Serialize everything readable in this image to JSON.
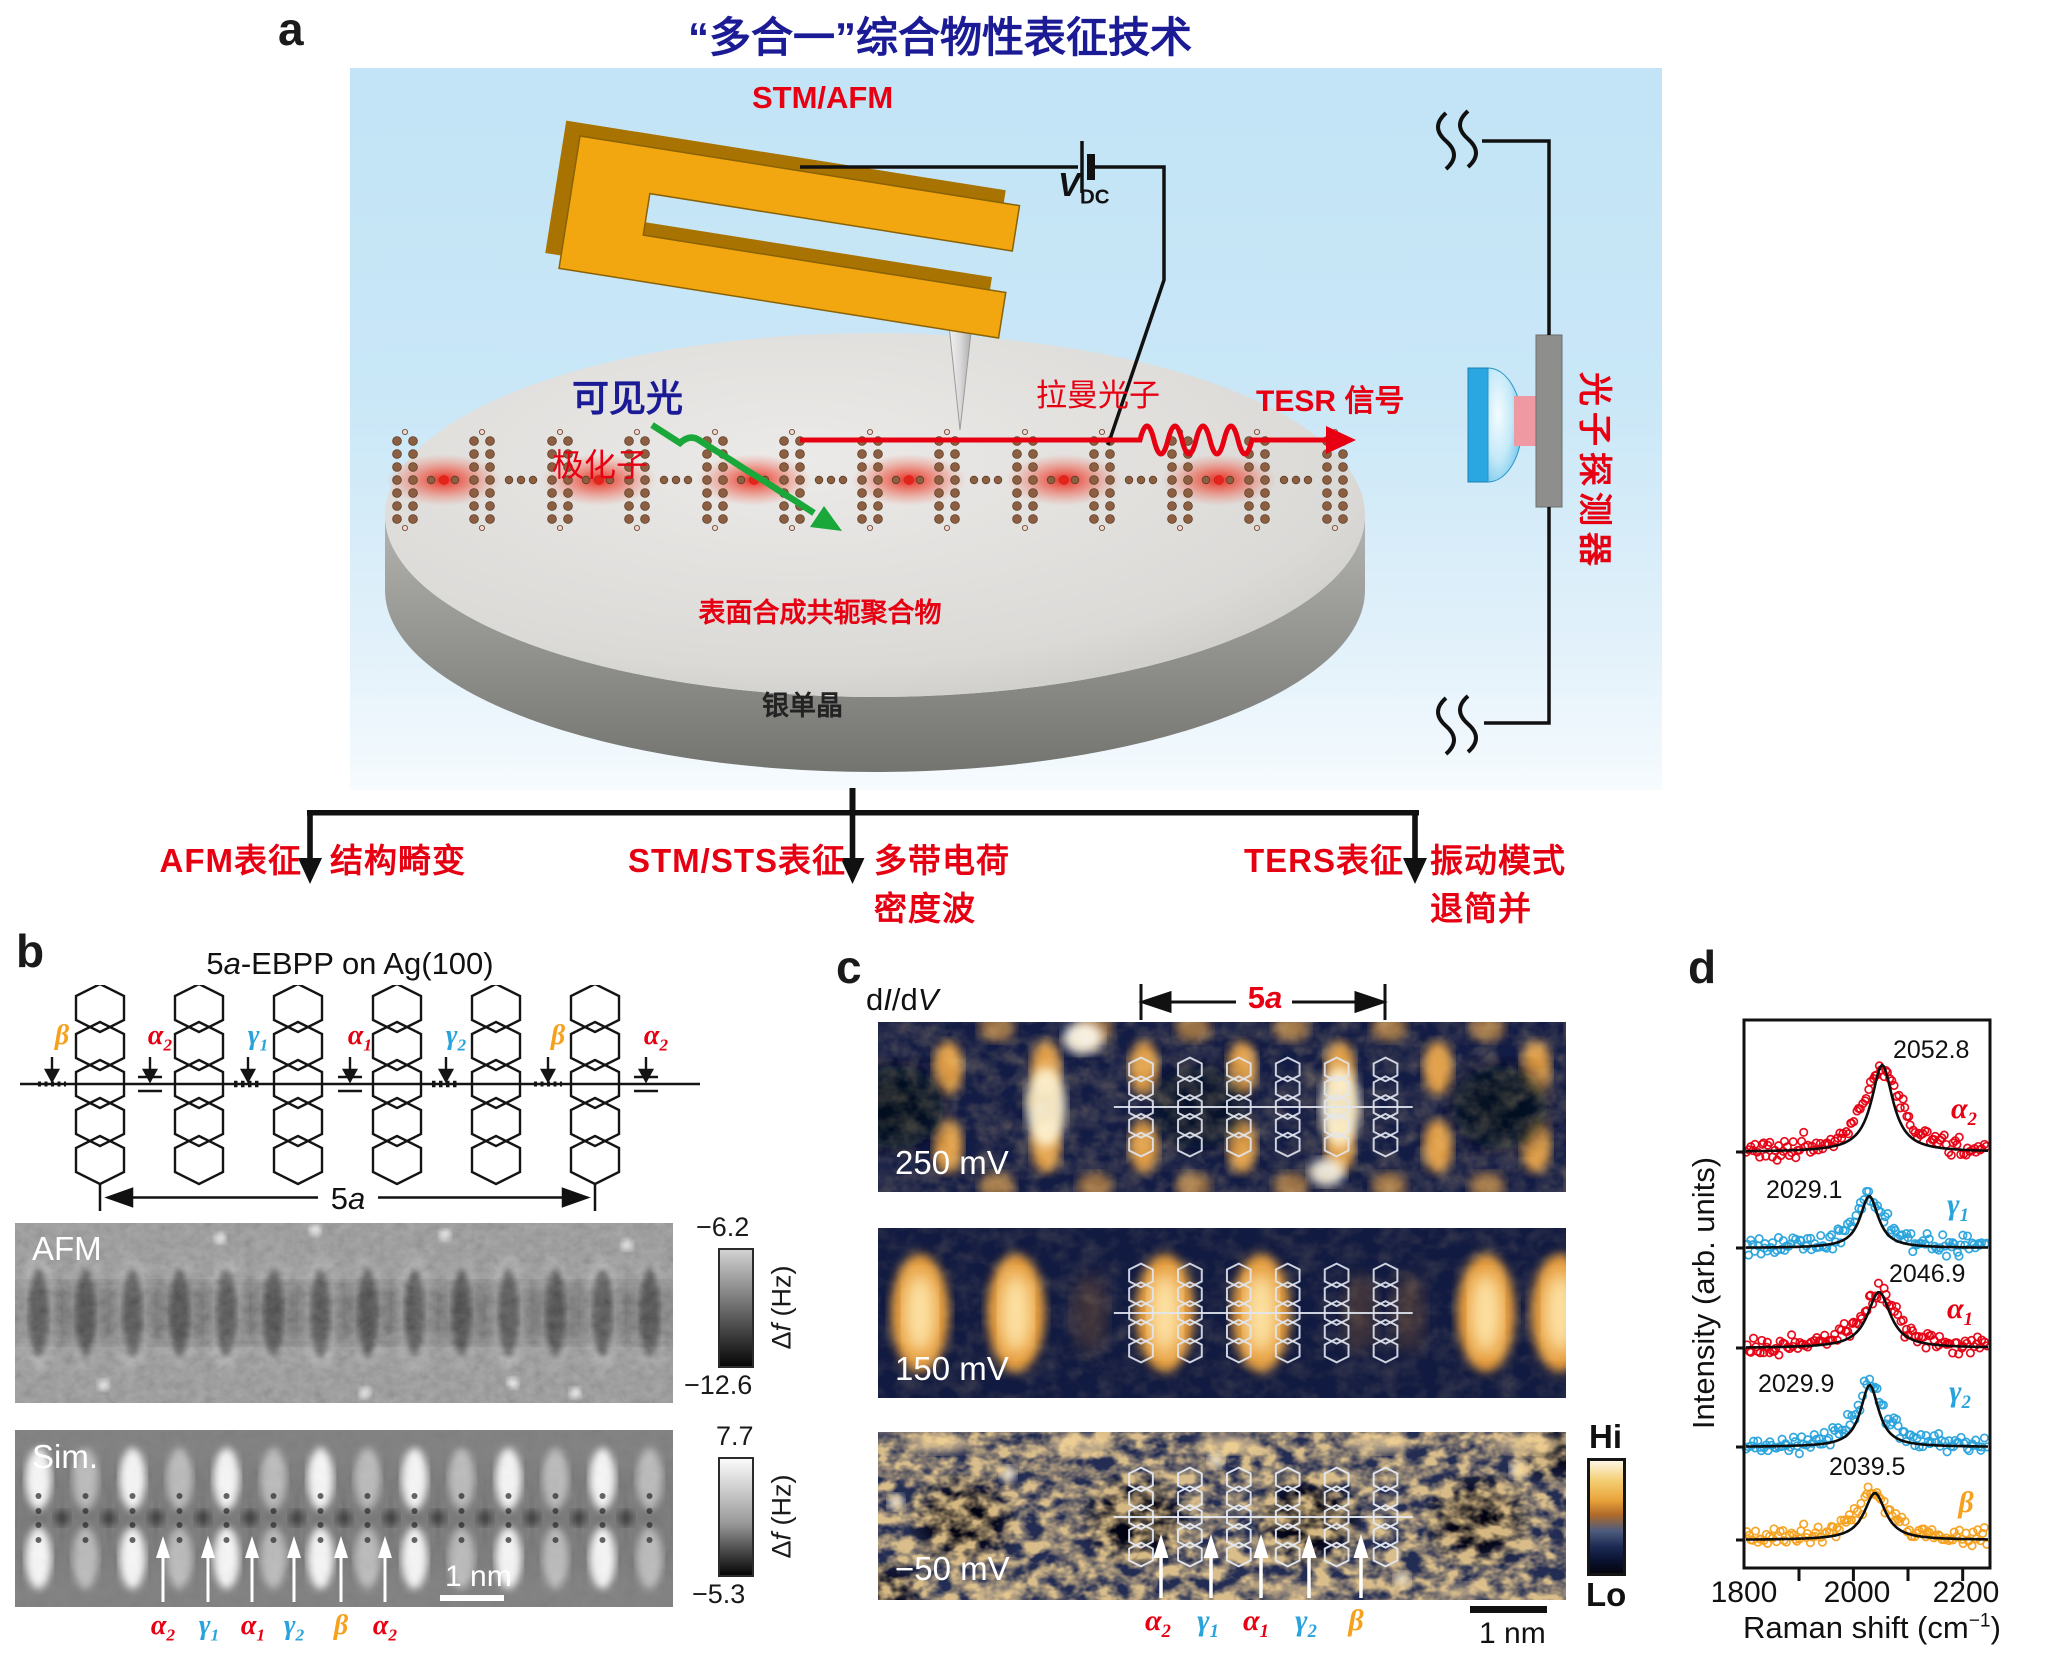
{
  "colors": {
    "red": "#e60012",
    "blue": "#29a3dc",
    "orange": "#f5a11d",
    "navy": "#1b1b96",
    "dark": "#1a1a1a"
  },
  "panel_a": {
    "label": "a",
    "title": "“多合一”综合物性表征技术",
    "probe_label": "STM/AFM",
    "bias": {
      "base": "V",
      "sub": "DC"
    },
    "visible_light": "可见光",
    "polaron": "极化子",
    "raman_photon": "拉曼光子",
    "tesr_signal": "TESR 信号",
    "photon_detector": "光子探测器",
    "polymer": "表面合成共轭聚合物",
    "substrate": "银单晶"
  },
  "flow": {
    "branches": [
      {
        "method": "AFM表征",
        "results": [
          "结构畸变"
        ]
      },
      {
        "method": "STM/STS表征",
        "results": [
          "多带电荷",
          "密度波"
        ]
      },
      {
        "method": "TERS表征",
        "results": [
          "振动模式",
          "退简并"
        ]
      }
    ]
  },
  "panel_b": {
    "label": "b",
    "title": {
      "pre": "5",
      "ital": "a",
      "post": "-EBPP on Ag(100)"
    },
    "bonds": [
      {
        "g": "β",
        "sub": "",
        "color": "orange"
      },
      {
        "g": "α",
        "sub": "2",
        "color": "red"
      },
      {
        "g": "γ",
        "sub": "1",
        "color": "blue"
      },
      {
        "g": "α",
        "sub": "1",
        "color": "red"
      },
      {
        "g": "γ",
        "sub": "2",
        "color": "blue"
      },
      {
        "g": "β",
        "sub": "",
        "color": "orange"
      },
      {
        "g": "α",
        "sub": "2",
        "color": "red"
      }
    ],
    "unit_span": {
      "pre": "5",
      "ital": "a"
    },
    "afm": {
      "tag": "AFM",
      "cb_max": "−6.2",
      "cb_min": "−12.6",
      "cb_unit": {
        "pre": "Δ",
        "ital": "f",
        "post": " (Hz)"
      }
    },
    "sim": {
      "tag": "Sim.",
      "cb_max": "7.7",
      "cb_min": "−5.3",
      "cb_unit": {
        "pre": "Δ",
        "ital": "f",
        "post": " (Hz)"
      },
      "scalebar": "1 nm",
      "bonds": [
        {
          "g": "α",
          "sub": "2",
          "color": "red"
        },
        {
          "g": "γ",
          "sub": "1",
          "color": "blue"
        },
        {
          "g": "α",
          "sub": "1",
          "color": "red"
        },
        {
          "g": "γ",
          "sub": "2",
          "color": "blue"
        },
        {
          "g": "β",
          "sub": "",
          "color": "orange"
        },
        {
          "g": "α",
          "sub": "2",
          "color": "red"
        }
      ]
    }
  },
  "panel_c": {
    "label": "c",
    "signal": {
      "p1": "d",
      "p2": "I",
      "p3": "/d",
      "p4": "V"
    },
    "unit_span": {
      "pre": "5",
      "ital": "a"
    },
    "maps": [
      {
        "bias": "250 mV"
      },
      {
        "bias": "150 mV"
      },
      {
        "bias": "−50 mV"
      }
    ],
    "bonds": [
      {
        "g": "α",
        "sub": "2",
        "color": "red"
      },
      {
        "g": "γ",
        "sub": "1",
        "color": "blue"
      },
      {
        "g": "α",
        "sub": "1",
        "color": "red"
      },
      {
        "g": "γ",
        "sub": "2",
        "color": "blue"
      },
      {
        "g": "β",
        "sub": "",
        "color": "orange"
      }
    ],
    "scalebar": "1 nm",
    "colorbar": {
      "max": "Hi",
      "min": "Lo"
    }
  },
  "panel_d": {
    "label": "d"
  },
  "chart_data": {
    "type": "scatter",
    "xlabel": {
      "pre": "Raman shift (cm",
      "sup": "−1",
      "post": ")"
    },
    "ylabel": "Intensity (arb. units)",
    "xlim": [
      1800,
      2250
    ],
    "xticks": [
      1800,
      1900,
      2000,
      2100,
      2200
    ],
    "xtick_labels": [
      "1800",
      "2000",
      "2200"
    ],
    "xtick_label_values": [
      1800,
      2000,
      2200
    ],
    "grid": false,
    "note": "five vertically stacked TERS spectra with Lorentzian fits (black curves)",
    "series": [
      {
        "name": "alpha2",
        "glabel": {
          "g": "α",
          "sub": "2",
          "color": "red"
        },
        "peak_center": 2052.8,
        "peak_label": "2052.8",
        "fit": "Lorentzian"
      },
      {
        "name": "gamma1",
        "glabel": {
          "g": "γ",
          "sub": "1",
          "color": "blue"
        },
        "peak_center": 2029.1,
        "peak_label": "2029.1",
        "fit": "Lorentzian"
      },
      {
        "name": "alpha1",
        "glabel": {
          "g": "α",
          "sub": "1",
          "color": "red"
        },
        "peak_center": 2046.9,
        "peak_label": "2046.9",
        "fit": "Lorentzian"
      },
      {
        "name": "gamma2",
        "glabel": {
          "g": "γ",
          "sub": "2",
          "color": "blue"
        },
        "peak_center": 2029.9,
        "peak_label": "2029.9",
        "fit": "Lorentzian"
      },
      {
        "name": "beta",
        "glabel": {
          "g": "β",
          "sub": "",
          "color": "orange"
        },
        "peak_center": 2039.5,
        "peak_label": "2039.5",
        "fit": "Lorentzian"
      }
    ]
  }
}
